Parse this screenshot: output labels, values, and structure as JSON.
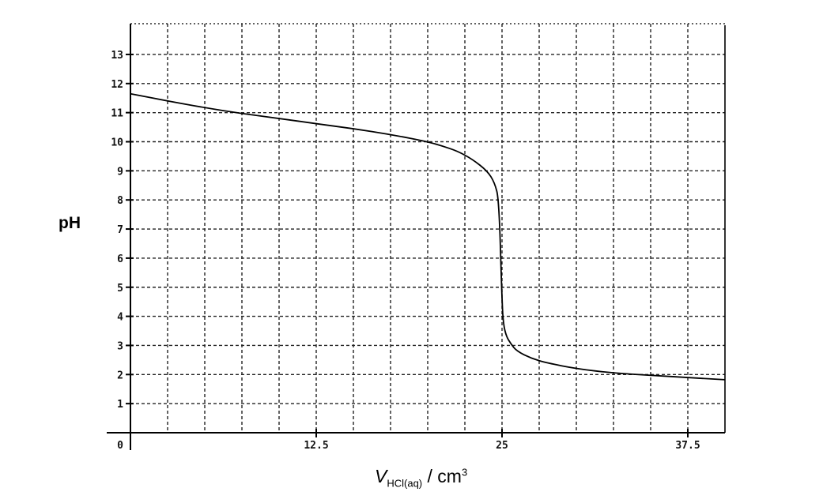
{
  "chart_data": {
    "type": "line",
    "title": "",
    "ylabel": "pH",
    "xlabel": {
      "symbol": "V",
      "subscript": "HCl(aq)",
      "rest": " / cm",
      "superscript": "3"
    },
    "xlim": [
      0,
      40
    ],
    "ylim": [
      0,
      14
    ],
    "grid": true,
    "x_tick_labels": [
      "0",
      "12.5",
      "25",
      "37.5"
    ],
    "x_tick_values": [
      0,
      12.5,
      25,
      37.5
    ],
    "y_tick_labels": [
      "1",
      "2",
      "3",
      "4",
      "5",
      "6",
      "7",
      "8",
      "9",
      "10",
      "11",
      "12",
      "13"
    ],
    "series": [
      {
        "color": "#000000",
        "x": [
          0,
          2.5,
          5,
          7.5,
          10,
          12.5,
          15,
          17.5,
          20,
          21,
          22,
          23,
          24,
          24.5,
          24.8,
          25,
          25.1,
          25.3,
          25.6,
          26,
          27,
          28,
          30,
          32.5,
          35,
          37.5,
          40
        ],
        "y": [
          11.65,
          11.4,
          11.17,
          10.97,
          10.8,
          10.62,
          10.45,
          10.25,
          10.0,
          9.85,
          9.68,
          9.4,
          9.0,
          8.6,
          8.0,
          4.5,
          3.7,
          3.3,
          3.05,
          2.8,
          2.55,
          2.4,
          2.2,
          2.05,
          1.97,
          1.9,
          1.82
        ]
      }
    ]
  }
}
